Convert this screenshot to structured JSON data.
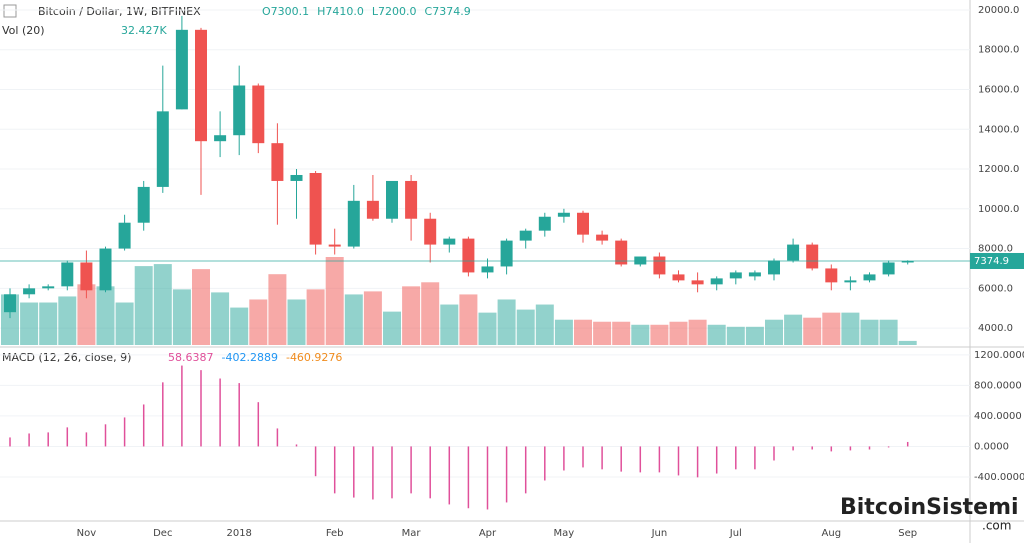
{
  "chart_data": [
    {
      "type": "candlestick",
      "title": "Bitcoin / Dollar, 1W, BITFINEX",
      "readout": [
        "O7300.1",
        "H7410.0",
        "L7200.0",
        "C7374.9"
      ],
      "categories": [
        null,
        null,
        null,
        null,
        "Nov",
        null,
        null,
        null,
        "Dec",
        null,
        null,
        null,
        "2018",
        null,
        null,
        null,
        null,
        "Feb",
        null,
        null,
        null,
        "Mar",
        null,
        null,
        null,
        "Apr",
        null,
        null,
        null,
        "May",
        null,
        null,
        null,
        null,
        "Jun",
        null,
        null,
        null,
        "Jul",
        null,
        null,
        null,
        null,
        "Aug",
        null,
        null,
        null,
        "Sep"
      ],
      "open": [
        4800,
        5700,
        6000,
        6100,
        7300,
        5900,
        8000,
        9300,
        11100,
        15000,
        19000,
        13400,
        13700,
        16200,
        13300,
        11400,
        11800,
        8200,
        8100,
        10400,
        9500,
        11400,
        9500,
        8200,
        8500,
        6800,
        7100,
        8400,
        8900,
        9600,
        9800,
        8700,
        8400,
        7200,
        7600,
        6700,
        6400,
        6200,
        6500,
        6600,
        6700,
        7400,
        8200,
        7000,
        6300,
        6400,
        6700,
        7300.1
      ],
      "high": [
        6000,
        6200,
        6200,
        7400,
        7900,
        8100,
        9700,
        11400,
        17200,
        19700,
        19100,
        14900,
        17200,
        16300,
        14300,
        12000,
        11900,
        9000,
        11200,
        11700,
        11300,
        11700,
        9800,
        8600,
        8600,
        7500,
        8500,
        9000,
        9800,
        10000,
        9900,
        8900,
        8500,
        7600,
        7800,
        6900,
        6800,
        6600,
        6900,
        6900,
        7500,
        8500,
        8300,
        7200,
        6600,
        6800,
        7400,
        7410.0
      ],
      "low": [
        4500,
        5500,
        5900,
        5900,
        5500,
        5800,
        7900,
        8900,
        10800,
        15000,
        10700,
        12600,
        12700,
        12800,
        9200,
        9500,
        7700,
        7700,
        8000,
        9400,
        9300,
        8400,
        7300,
        7800,
        6600,
        6500,
        6700,
        8000,
        8600,
        9300,
        8300,
        8200,
        7100,
        7100,
        6500,
        6300,
        5800,
        5900,
        6200,
        6400,
        6400,
        7300,
        6900,
        5900,
        5900,
        6300,
        6600,
        7200.0
      ],
      "close": [
        5700,
        6000,
        6100,
        7300,
        5900,
        8000,
        9300,
        11100,
        14900,
        19000,
        13400,
        13700,
        16200,
        13300,
        11400,
        11700,
        8200,
        8100,
        10400,
        9500,
        11400,
        9500,
        8200,
        8500,
        6800,
        7100,
        8400,
        8900,
        9600,
        9800,
        8700,
        8400,
        7200,
        7600,
        6700,
        6400,
        6200,
        6500,
        6800,
        6800,
        7400,
        8200,
        7000,
        6300,
        6400,
        6700,
        7300,
        7374.9
      ],
      "up_color": "#26a69a",
      "down_color": "#ef5350",
      "ylim": [
        3150,
        20500
      ],
      "yticks": [
        {
          "value": 4000,
          "label": "4000.0"
        },
        {
          "value": 6000,
          "label": "6000.0"
        },
        {
          "value": 8000,
          "label": "8000.0"
        },
        {
          "value": 10000,
          "label": "10000.0"
        },
        {
          "value": 12000,
          "label": "12000.0"
        },
        {
          "value": 14000,
          "label": "14000.0"
        },
        {
          "value": 16000,
          "label": "16000.0"
        },
        {
          "value": 18000,
          "label": "18000.0"
        },
        {
          "value": 20000,
          "label": "20000.0"
        }
      ],
      "volume": {
        "label": "Vol (20)",
        "last_label": "32.427K",
        "values": [
          400,
          336,
          336,
          384,
          480,
          464,
          336,
          624,
          640,
          440,
          600,
          416,
          296,
          360,
          560,
          360,
          440,
          696,
          400,
          424,
          264,
          464,
          496,
          320,
          400,
          256,
          360,
          280,
          320,
          200,
          200,
          184,
          184,
          160,
          160,
          184,
          200,
          160,
          144,
          144,
          200,
          240,
          216,
          256,
          256,
          200,
          200,
          32.427
        ]
      },
      "watermark": [
        "BitcoinSistemi",
        ".com"
      ]
    },
    {
      "type": "bar",
      "title": "MACD (12, 26, close, 9)",
      "readouts": [
        {
          "value": 58.6387,
          "color": "#e0509a"
        },
        {
          "value": -402.2889,
          "color": "#2196f3"
        },
        {
          "value": -460.9276,
          "color": "#f08c1e"
        }
      ],
      "values": [
        118,
        170,
        184,
        250,
        184,
        290,
        380,
        550,
        840,
        1060,
        1000,
        890,
        830,
        580,
        236,
        26,
        -390,
        -615,
        -670,
        -695,
        -680,
        -615,
        -680,
        -760,
        -810,
        -826,
        -734,
        -615,
        -446,
        -315,
        -275,
        -300,
        -330,
        -340,
        -340,
        -380,
        -405,
        -355,
        -300,
        -300,
        -184,
        -52,
        -40,
        -65,
        -52,
        -40,
        -13,
        58.6387
      ],
      "color": "#e0509a",
      "ylim": [
        -964,
        1290
      ],
      "yticks": [
        {
          "value": -400,
          "label": "-400.0000"
        },
        {
          "value": 0,
          "label": "0.0000"
        },
        {
          "value": 400,
          "label": "400.0000"
        },
        {
          "value": 800,
          "label": "800.0000"
        },
        {
          "value": 1200,
          "label": "1200.0000"
        }
      ]
    }
  ]
}
